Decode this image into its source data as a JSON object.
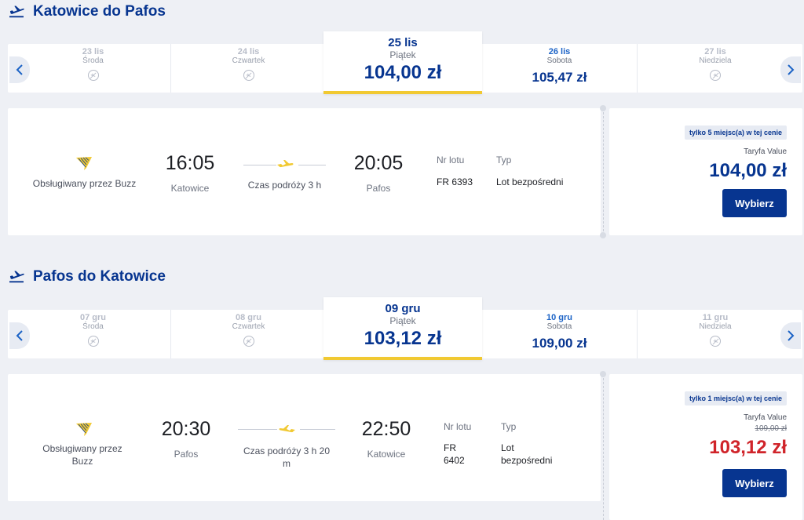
{
  "outbound": {
    "title": "Katowice do Pafos",
    "dates": [
      {
        "date": "23 lis",
        "weekday": "Środa"
      },
      {
        "date": "24 lis",
        "weekday": "Czwartek"
      },
      {
        "date": "25 lis",
        "weekday": "Piątek",
        "price": "104,00 zł"
      },
      {
        "date": "26 lis",
        "weekday": "Sobota",
        "price": "105,47 zł"
      },
      {
        "date": "27 lis",
        "weekday": "Niedziela"
      }
    ],
    "flight": {
      "operator": "Obsługiwany przez Buzz",
      "dep_time": "16:05",
      "dep_city": "Katowice",
      "duration": "Czas podróży 3 h",
      "arr_time": "20:05",
      "arr_city": "Pafos",
      "flight_no_label": "Nr lotu",
      "flight_no": "FR 6393",
      "type_label": "Typ",
      "type": "Lot bezpośredni"
    },
    "fare": {
      "badge": "tylko 5 miejsc(a) w tej cenie",
      "fare_name": "Taryfa Value",
      "price": "104,00 zł",
      "button": "Wybierz"
    }
  },
  "inbound": {
    "title": "Pafos do Katowice",
    "dates": [
      {
        "date": "07 gru",
        "weekday": "Środa"
      },
      {
        "date": "08 gru",
        "weekday": "Czwartek"
      },
      {
        "date": "09 gru",
        "weekday": "Piątek",
        "price": "103,12 zł"
      },
      {
        "date": "10 gru",
        "weekday": "Sobota",
        "price": "109,00 zł"
      },
      {
        "date": "11 gru",
        "weekday": "Niedziela"
      }
    ],
    "flight": {
      "operator": "Obsługiwany przez Buzz",
      "dep_time": "20:30",
      "dep_city": "Pafos",
      "duration": "Czas podróży 3 h 20 m",
      "arr_time": "22:50",
      "arr_city": "Katowice",
      "flight_no_label": "Nr lotu",
      "flight_no": "FR 6402",
      "type_label": "Typ",
      "type": "Lot bezpośredni"
    },
    "fare": {
      "badge": "tylko 1 miejsc(a) w tej cenie",
      "fare_name": "Taryfa Value",
      "old_price": "109,00 zł",
      "price": "103,12 zł",
      "button": "Wybierz"
    }
  },
  "colors": {
    "brand": "#073590",
    "accent_yellow": "#f1c932",
    "discount_red": "#d0242a"
  }
}
